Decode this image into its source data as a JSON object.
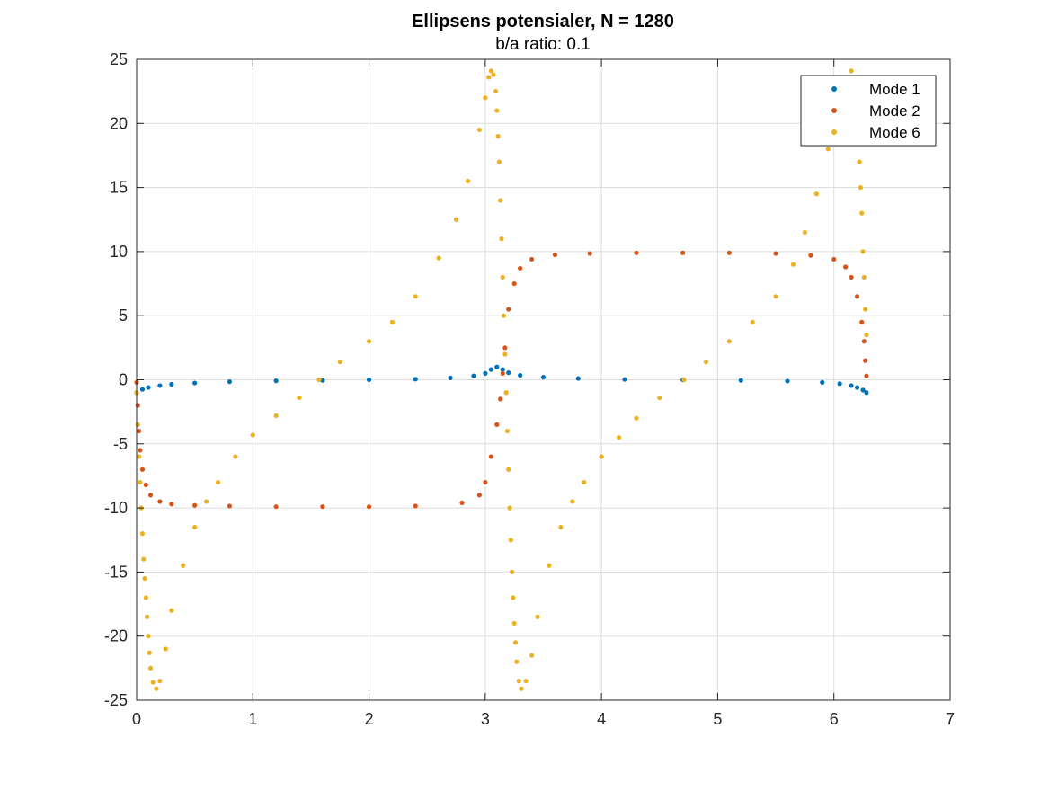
{
  "chart_data": {
    "type": "scatter",
    "title": "Ellipsens potensialer, N = 1280",
    "subtitle": "b/a ratio: 0.1",
    "xlabel": "",
    "ylabel": "",
    "xlim": [
      0,
      7
    ],
    "ylim": [
      -25,
      25
    ],
    "xticks": [
      0,
      1,
      2,
      3,
      4,
      5,
      6,
      7
    ],
    "yticks": [
      -25,
      -20,
      -15,
      -10,
      -5,
      0,
      5,
      10,
      15,
      20,
      25
    ],
    "grid": true,
    "legend_position": "top-right",
    "series": [
      {
        "name": "Mode 1",
        "color": "#0072BD",
        "x": [
          0,
          0.05,
          0.1,
          0.2,
          0.3,
          0.5,
          0.8,
          1.2,
          1.6,
          2.0,
          2.4,
          2.7,
          2.9,
          3.0,
          3.05,
          3.1,
          3.15,
          3.2,
          3.3,
          3.5,
          3.8,
          4.2,
          4.7,
          5.2,
          5.6,
          5.9,
          6.05,
          6.15,
          6.2,
          6.25,
          6.28
        ],
        "y": [
          -1.0,
          -0.75,
          -0.6,
          -0.45,
          -0.35,
          -0.25,
          -0.15,
          -0.08,
          -0.05,
          0,
          0.05,
          0.15,
          0.3,
          0.5,
          0.8,
          1.0,
          0.8,
          0.55,
          0.35,
          0.2,
          0.1,
          0.03,
          0,
          -0.05,
          -0.1,
          -0.2,
          -0.3,
          -0.45,
          -0.6,
          -0.8,
          -1.0
        ]
      },
      {
        "name": "Mode 2",
        "color": "#D95319",
        "x": [
          0,
          0.01,
          0.02,
          0.03,
          0.05,
          0.08,
          0.12,
          0.2,
          0.3,
          0.5,
          0.8,
          1.2,
          1.6,
          2.0,
          2.4,
          2.8,
          2.95,
          3.0,
          3.05,
          3.1,
          3.13,
          3.15,
          3.17,
          3.2,
          3.25,
          3.3,
          3.4,
          3.6,
          3.9,
          4.3,
          4.7,
          5.1,
          5.5,
          5.8,
          6.0,
          6.1,
          6.15,
          6.2,
          6.24,
          6.26,
          6.27,
          6.28
        ],
        "y": [
          -0.2,
          -2,
          -4,
          -5.5,
          -7,
          -8.2,
          -9.0,
          -9.5,
          -9.7,
          -9.8,
          -9.85,
          -9.9,
          -9.9,
          -9.9,
          -9.85,
          -9.6,
          -9.0,
          -8.0,
          -6.0,
          -3.5,
          -1.5,
          0.5,
          2.5,
          5.5,
          7.5,
          8.7,
          9.4,
          9.75,
          9.85,
          9.9,
          9.9,
          9.9,
          9.85,
          9.7,
          9.4,
          8.8,
          8.0,
          6.5,
          4.5,
          3.0,
          1.5,
          0.3
        ]
      },
      {
        "name": "Mode 6",
        "color": "#EDB120",
        "x": [
          0,
          0.01,
          0.02,
          0.03,
          0.04,
          0.05,
          0.06,
          0.07,
          0.08,
          0.09,
          0.1,
          0.11,
          0.12,
          0.14,
          0.17,
          0.2,
          0.25,
          0.3,
          0.4,
          0.5,
          0.6,
          0.7,
          0.85,
          1.0,
          1.2,
          1.4,
          1.57,
          1.75,
          2.0,
          2.2,
          2.4,
          2.6,
          2.75,
          2.85,
          2.95,
          3.0,
          3.03,
          3.05,
          3.07,
          3.09,
          3.1,
          3.11,
          3.12,
          3.13,
          3.14,
          3.15,
          3.16,
          3.17,
          3.18,
          3.19,
          3.2,
          3.21,
          3.22,
          3.23,
          3.24,
          3.25,
          3.26,
          3.27,
          3.29,
          3.31,
          3.35,
          3.4,
          3.45,
          3.55,
          3.65,
          3.75,
          3.85,
          4.0,
          4.15,
          4.3,
          4.5,
          4.71,
          4.9,
          5.1,
          5.3,
          5.5,
          5.65,
          5.75,
          5.85,
          5.95,
          6.05,
          6.1,
          6.15,
          6.17,
          6.19,
          6.21,
          6.22,
          6.23,
          6.24,
          6.25,
          6.26,
          6.27,
          6.28
        ],
        "y": [
          -1,
          -3.5,
          -6,
          -8,
          -10,
          -12,
          -14,
          -15.5,
          -17,
          -18.5,
          -20,
          -21.3,
          -22.5,
          -23.6,
          -24.1,
          -23.5,
          -21,
          -18,
          -14.5,
          -11.5,
          -9.5,
          -8,
          -6,
          -4.3,
          -2.8,
          -1.4,
          0,
          1.4,
          3.0,
          4.5,
          6.5,
          9.5,
          12.5,
          15.5,
          19.5,
          22,
          23.6,
          24.1,
          23.8,
          22.5,
          21,
          19,
          17,
          14,
          11,
          8,
          5,
          2,
          -1,
          -4,
          -7,
          -10,
          -12.5,
          -15,
          -17,
          -19,
          -20.5,
          -22,
          -23.5,
          -24.1,
          -23.5,
          -21.5,
          -18.5,
          -14.5,
          -11.5,
          -9.5,
          -8,
          -6,
          -4.5,
          -3,
          -1.4,
          0,
          1.4,
          3.0,
          4.5,
          6.5,
          9.0,
          11.5,
          14.5,
          18,
          21.5,
          23.2,
          24.1,
          23.5,
          22,
          19.5,
          17,
          15,
          13,
          10,
          8,
          5.5,
          3.5
        ]
      }
    ]
  }
}
